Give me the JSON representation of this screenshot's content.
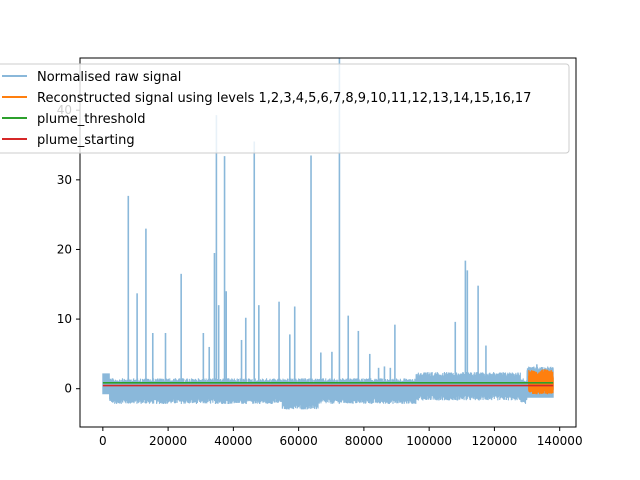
{
  "chart_data": {
    "type": "line",
    "title": "",
    "xlabel": "",
    "ylabel": "",
    "xlim": [
      -7000,
      145000
    ],
    "ylim": [
      -5.5,
      47.5
    ],
    "xticks": [
      0,
      20000,
      40000,
      60000,
      80000,
      100000,
      120000,
      140000
    ],
    "xtick_labels": [
      "0",
      "20000",
      "40000",
      "60000",
      "80000",
      "100000",
      "120000",
      "140000"
    ],
    "yticks": [
      0,
      10,
      20,
      30,
      40
    ],
    "ytick_labels": [
      "0",
      "10",
      "20",
      "30",
      "40"
    ],
    "grid": false,
    "legend_position": "upper-left",
    "series": [
      {
        "name": "Normalised raw signal",
        "color": "#8ab8da",
        "x_range": [
          0,
          138000
        ],
        "baseline_band": [
          -2.2,
          1.5
        ],
        "spikes": [
          {
            "x": 7800,
            "y": 27.7
          },
          {
            "x": 10500,
            "y": 13.7
          },
          {
            "x": 13200,
            "y": 23.0
          },
          {
            "x": 15300,
            "y": 8.0
          },
          {
            "x": 19200,
            "y": 8.0
          },
          {
            "x": 24000,
            "y": 16.5
          },
          {
            "x": 30800,
            "y": 8.0
          },
          {
            "x": 32600,
            "y": 6.0
          },
          {
            "x": 34200,
            "y": 19.5
          },
          {
            "x": 34800,
            "y": 39.3
          },
          {
            "x": 35500,
            "y": 12.0
          },
          {
            "x": 37300,
            "y": 33.4
          },
          {
            "x": 37800,
            "y": 14.0
          },
          {
            "x": 42500,
            "y": 7.0
          },
          {
            "x": 43800,
            "y": 10.2
          },
          {
            "x": 46400,
            "y": 35.5
          },
          {
            "x": 47800,
            "y": 12.0
          },
          {
            "x": 54000,
            "y": 12.5
          },
          {
            "x": 57300,
            "y": 7.8
          },
          {
            "x": 58800,
            "y": 11.8
          },
          {
            "x": 63800,
            "y": 33.5
          },
          {
            "x": 66800,
            "y": 5.2
          },
          {
            "x": 70200,
            "y": 5.3
          },
          {
            "x": 72500,
            "y": 47.5
          },
          {
            "x": 75200,
            "y": 10.5
          },
          {
            "x": 78300,
            "y": 8.3
          },
          {
            "x": 81800,
            "y": 5.0
          },
          {
            "x": 84500,
            "y": 3.0
          },
          {
            "x": 86300,
            "y": 3.2
          },
          {
            "x": 88100,
            "y": 3.0
          },
          {
            "x": 89500,
            "y": 9.2
          },
          {
            "x": 108000,
            "y": 9.6
          },
          {
            "x": 111100,
            "y": 18.4
          },
          {
            "x": 111700,
            "y": 17.0
          },
          {
            "x": 115000,
            "y": 14.8
          },
          {
            "x": 117400,
            "y": 6.2
          },
          {
            "x": 133000,
            "y": 3.5
          }
        ]
      },
      {
        "name": "Reconstructed signal using levels 1,2,3,4,5,6,7,8,9,10,11,12,13,14,15,16,17",
        "color": "#ff7f0e",
        "x_range": [
          130500,
          138000
        ],
        "band": [
          -0.8,
          2.8
        ]
      },
      {
        "name": "plume_threshold",
        "color": "#2ca02c",
        "x": [
          0,
          138000
        ],
        "y": [
          0.85,
          0.85
        ]
      },
      {
        "name": "plume_starting",
        "color": "#d62728",
        "x": [
          0,
          138000
        ],
        "y": [
          0.45,
          0.45
        ]
      }
    ]
  }
}
